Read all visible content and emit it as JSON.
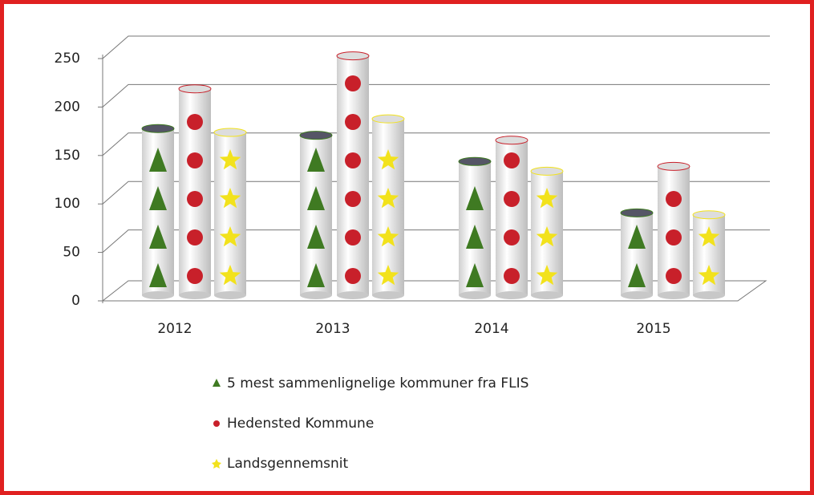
{
  "chart_data": {
    "type": "bar3d",
    "categories": [
      "2012",
      "2013",
      "2014",
      "2015"
    ],
    "series": [
      {
        "name": "5 mest sammenlignelige kommuner fra FLIS",
        "color": "#3f7a22",
        "values": [
          172,
          165,
          138,
          85
        ]
      },
      {
        "name": "Hedensted Kommune",
        "color": "#c8202a",
        "values": [
          213,
          247,
          160,
          133
        ]
      },
      {
        "name": "Landsgennemsnit",
        "color": "#f2e21c",
        "values": [
          168,
          182,
          128,
          83
        ]
      }
    ],
    "ylim": [
      0,
      250
    ],
    "yticks": [
      0,
      50,
      100,
      150,
      200,
      250
    ],
    "grid": true
  }
}
